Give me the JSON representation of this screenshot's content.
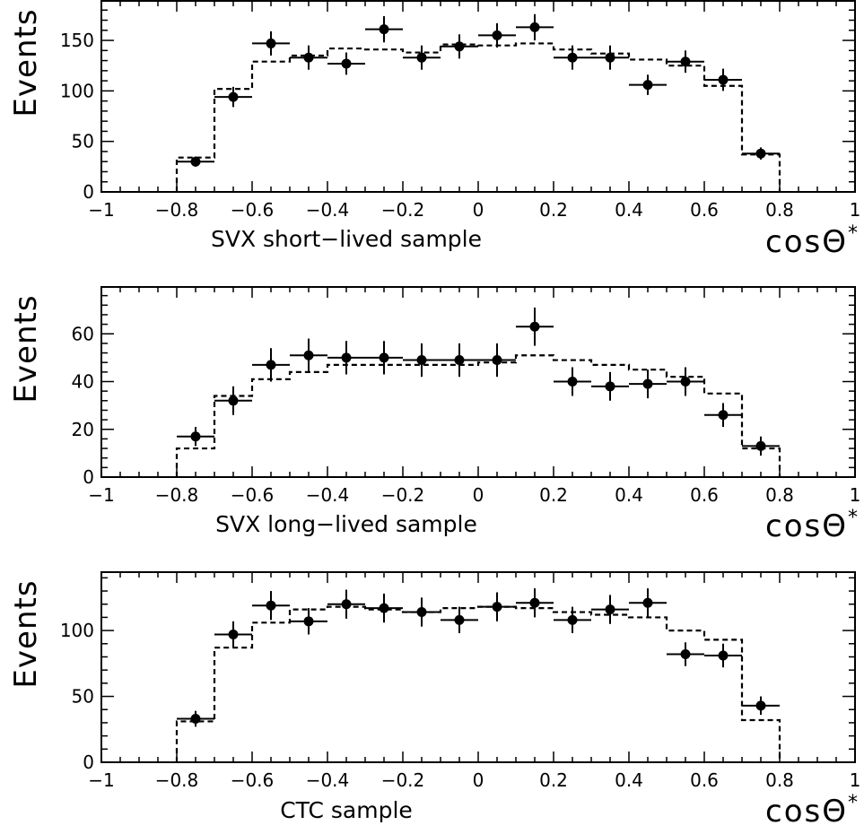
{
  "chart_data": [
    {
      "type": "histogram-with-points",
      "title": "",
      "xlabel": "SVX short−lived sample",
      "xvar": "cosΘ",
      "xvar_sup": "*",
      "ylabel": "Events",
      "xlim": [
        -1,
        1
      ],
      "ylim": [
        0,
        190
      ],
      "xticks": [
        -1,
        -0.8,
        -0.6,
        -0.4,
        -0.2,
        0,
        0.2,
        0.4,
        0.6,
        0.8,
        1
      ],
      "xtick_labels": [
        "−1",
        "−0.8",
        "−0.6",
        "−0.4",
        "−0.2",
        "0",
        "0.2",
        "0.4",
        "0.6",
        "0.8",
        "1"
      ],
      "yticks": [
        0,
        50,
        100,
        150
      ],
      "ytick_labels": [
        "0",
        "50",
        "100",
        "150"
      ],
      "bin_edges": [
        -0.8,
        -0.7,
        -0.6,
        -0.5,
        -0.4,
        -0.3,
        -0.2,
        -0.1,
        0,
        0.1,
        0.2,
        0.3,
        0.4,
        0.5,
        0.6,
        0.7,
        0.8
      ],
      "series": [
        {
          "kind": "data-points",
          "x": [
            -0.75,
            -0.65,
            -0.55,
            -0.45,
            -0.35,
            -0.25,
            -0.15,
            -0.05,
            0.05,
            0.15,
            0.25,
            0.35,
            0.45,
            0.55,
            0.65,
            0.75
          ],
          "y": [
            30,
            94,
            147,
            133,
            127,
            161,
            133,
            144,
            155,
            163,
            133,
            133,
            106,
            129,
            111,
            38
          ],
          "yerr": [
            5,
            10,
            12,
            12,
            11,
            13,
            12,
            12,
            12,
            13,
            12,
            12,
            10,
            11,
            11,
            6
          ]
        },
        {
          "kind": "dashed-histogram",
          "values": [
            34,
            102,
            129,
            135,
            142,
            141,
            138,
            146,
            145,
            147,
            141,
            137,
            131,
            125,
            105,
            37
          ]
        }
      ]
    },
    {
      "type": "histogram-with-points",
      "title": "",
      "xlabel": "SVX long−lived sample",
      "xvar": "cosΘ",
      "xvar_sup": "*",
      "ylabel": "Events",
      "xlim": [
        -1,
        1
      ],
      "ylim": [
        0,
        80
      ],
      "xticks": [
        -1,
        -0.8,
        -0.6,
        -0.4,
        -0.2,
        0,
        0.2,
        0.4,
        0.6,
        0.8,
        1
      ],
      "xtick_labels": [
        "−1",
        "−0.8",
        "−0.6",
        "−0.4",
        "−0.2",
        "0",
        "0.2",
        "0.4",
        "0.6",
        "0.8",
        "1"
      ],
      "yticks": [
        0,
        20,
        40,
        60
      ],
      "ytick_labels": [
        "0",
        "20",
        "40",
        "60"
      ],
      "bin_edges": [
        -0.8,
        -0.7,
        -0.6,
        -0.5,
        -0.4,
        -0.3,
        -0.2,
        -0.1,
        0,
        0.1,
        0.2,
        0.3,
        0.4,
        0.5,
        0.6,
        0.7,
        0.8
      ],
      "series": [
        {
          "kind": "data-points",
          "x": [
            -0.75,
            -0.65,
            -0.55,
            -0.45,
            -0.35,
            -0.25,
            -0.15,
            -0.05,
            0.05,
            0.15,
            0.25,
            0.35,
            0.45,
            0.55,
            0.65,
            0.75
          ],
          "y": [
            17,
            32,
            47,
            51,
            50,
            50,
            49,
            49,
            49,
            63,
            40,
            38,
            39,
            40,
            26,
            13
          ],
          "yerr": [
            4,
            6,
            7,
            7,
            7,
            7,
            7,
            7,
            7,
            8,
            6,
            6,
            6,
            6,
            5,
            4
          ]
        },
        {
          "kind": "dashed-histogram",
          "values": [
            12,
            34,
            41,
            44,
            47,
            47,
            47,
            47,
            48,
            51,
            49,
            47,
            45,
            42,
            35,
            12
          ]
        }
      ]
    },
    {
      "type": "histogram-with-points",
      "title": "",
      "xlabel": "CTC sample",
      "xvar": "cosΘ",
      "xvar_sup": "*",
      "ylabel": "Events",
      "xlim": [
        -1,
        1
      ],
      "ylim": [
        0,
        145
      ],
      "xticks": [
        -1,
        -0.8,
        -0.6,
        -0.4,
        -0.2,
        0,
        0.2,
        0.4,
        0.6,
        0.8,
        1
      ],
      "xtick_labels": [
        "−1",
        "−0.8",
        "−0.6",
        "−0.4",
        "−0.2",
        "0",
        "0.2",
        "0.4",
        "0.6",
        "0.8",
        "1"
      ],
      "yticks": [
        0,
        50,
        100
      ],
      "ytick_labels": [
        "0",
        "50",
        "100"
      ],
      "bin_edges": [
        -0.8,
        -0.7,
        -0.6,
        -0.5,
        -0.4,
        -0.3,
        -0.2,
        -0.1,
        0,
        0.1,
        0.2,
        0.3,
        0.4,
        0.5,
        0.6,
        0.7,
        0.8
      ],
      "series": [
        {
          "kind": "data-points",
          "x": [
            -0.75,
            -0.65,
            -0.55,
            -0.45,
            -0.35,
            -0.25,
            -0.15,
            -0.05,
            0.05,
            0.15,
            0.25,
            0.35,
            0.45,
            0.55,
            0.65,
            0.75
          ],
          "y": [
            33,
            97,
            119,
            107,
            120,
            117,
            114,
            108,
            118,
            121,
            108,
            116,
            121,
            82,
            81,
            43
          ],
          "yerr": [
            6,
            10,
            11,
            10,
            11,
            11,
            11,
            10,
            11,
            11,
            10,
            11,
            11,
            9,
            9,
            7
          ]
        },
        {
          "kind": "dashed-histogram",
          "values": [
            31,
            87,
            106,
            116,
            118,
            116,
            114,
            117,
            118,
            117,
            114,
            112,
            110,
            100,
            93,
            32
          ]
        }
      ]
    }
  ]
}
